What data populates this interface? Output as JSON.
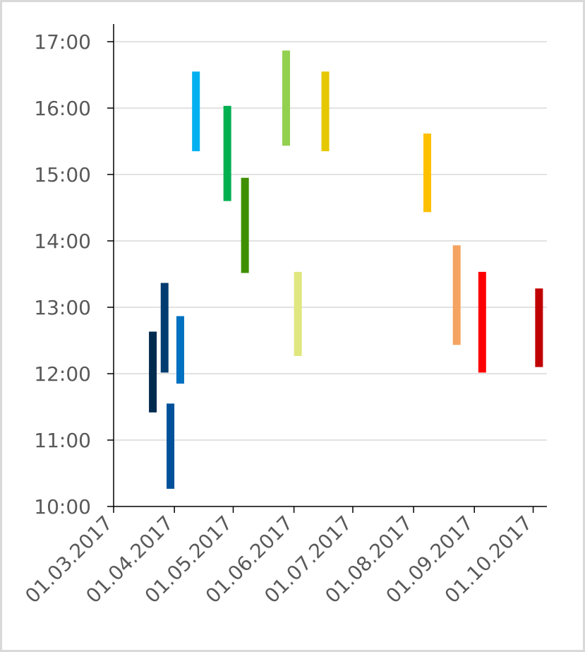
{
  "chart_data": {
    "type": "floating-bar",
    "title": "",
    "xlabel": "",
    "ylabel": "",
    "x_axis": {
      "type": "date",
      "ticks": [
        "01.03.2017",
        "01.04.2017",
        "01.05.2017",
        "01.06.2017",
        "01.07.2017",
        "01.08.2017",
        "01.09.2017",
        "01.10.2017"
      ],
      "range": [
        "2017-03-01",
        "2017-10-08"
      ]
    },
    "y_axis": {
      "type": "time",
      "ticks": [
        "10:00",
        "11:00",
        "12:00",
        "13:00",
        "14:00",
        "15:00",
        "16:00",
        "17:00"
      ],
      "range": [
        "10:00",
        "17:00"
      ]
    },
    "grid": "horizontal",
    "legend": "none",
    "series": [
      {
        "date": "2017-03-21",
        "start": "11:25",
        "end": "12:38",
        "color": "#002b4f"
      },
      {
        "date": "2017-03-27",
        "start": "12:01",
        "end": "13:22",
        "color": "#003c70"
      },
      {
        "date": "2017-03-30",
        "start": "10:16",
        "end": "11:33",
        "color": "#00509a"
      },
      {
        "date": "2017-04-04",
        "start": "11:51",
        "end": "12:52",
        "color": "#0070c0"
      },
      {
        "date": "2017-04-12",
        "start": "15:21",
        "end": "16:33",
        "color": "#00b0f0"
      },
      {
        "date": "2017-04-28",
        "start": "14:36",
        "end": "16:02",
        "color": "#00b050"
      },
      {
        "date": "2017-05-07",
        "start": "13:31",
        "end": "14:57",
        "color": "#3f8f00"
      },
      {
        "date": "2017-05-28",
        "start": "15:26",
        "end": "16:52",
        "color": "#92d050"
      },
      {
        "date": "2017-06-03",
        "start": "12:16",
        "end": "13:32",
        "color": "#e0e77e"
      },
      {
        "date": "2017-06-17",
        "start": "15:21",
        "end": "16:33",
        "color": "#e5c800"
      },
      {
        "date": "2017-08-08",
        "start": "14:26",
        "end": "15:37",
        "color": "#ffc000"
      },
      {
        "date": "2017-08-23",
        "start": "12:26",
        "end": "13:56",
        "color": "#f4a460"
      },
      {
        "date": "2017-09-05",
        "start": "12:01",
        "end": "13:32",
        "color": "#ff0000"
      },
      {
        "date": "2017-10-04",
        "start": "12:06",
        "end": "13:17",
        "color": "#c00000"
      }
    ]
  }
}
